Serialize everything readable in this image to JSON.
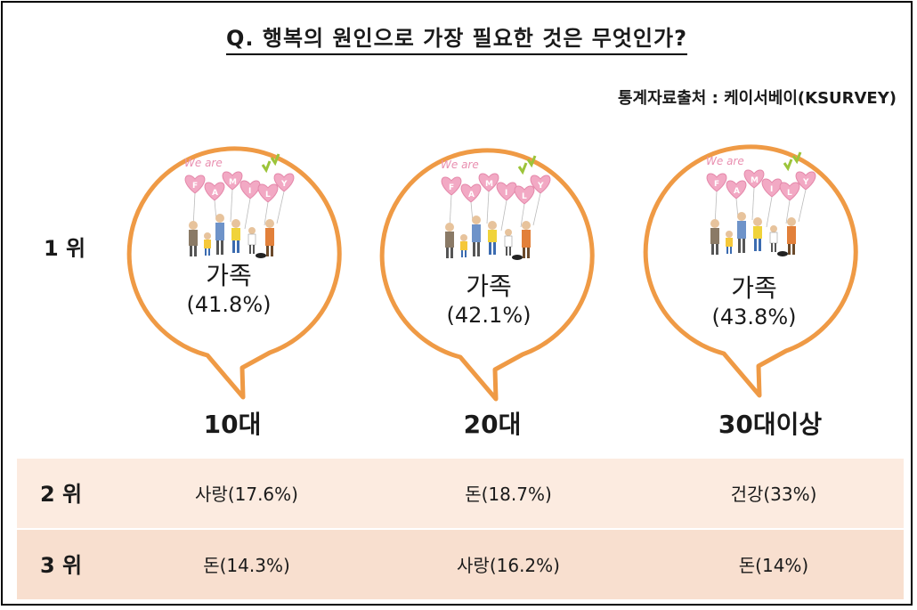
{
  "title": "Q. 행복의 원인으로 가장 필요한 것은 무엇인가?",
  "source": "통계자료출처 : 케이서베이(KSURVEY)",
  "rank1": {
    "label": "1 위",
    "groups": [
      {
        "age": "10대",
        "category": "가족",
        "percent": "(41.8%)"
      },
      {
        "age": "20대",
        "category": "가족",
        "percent": "(42.1%)"
      },
      {
        "age": "30대이상",
        "category": "가족",
        "percent": "(43.8%)"
      }
    ]
  },
  "illustration": {
    "top_text": "We are",
    "letters": [
      "F",
      "A",
      "M",
      "I",
      "L",
      "Y"
    ]
  },
  "rank2": {
    "label": "2 위",
    "cells": [
      "사랑(17.6%)",
      "돈(18.7%)",
      "건강(33%)"
    ]
  },
  "rank3": {
    "label": "3 위",
    "cells": [
      "돈(14.3%)",
      "사랑(16.2%)",
      "돈(14%)"
    ]
  },
  "colors": {
    "bubble_stroke": "#ef9a45",
    "row2_bg": "#fcebe0",
    "row3_bg": "#f8dfcf",
    "heart": "#f2a9c4",
    "leaf": "#9cc43a"
  }
}
